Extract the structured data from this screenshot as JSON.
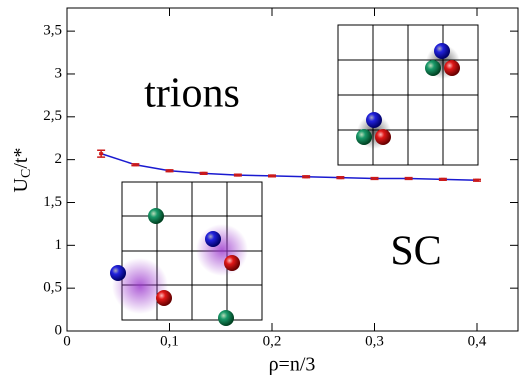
{
  "chart_data": {
    "type": "line",
    "x": [
      0.0333,
      0.0667,
      0.1,
      0.1333,
      0.1667,
      0.2,
      0.2333,
      0.2667,
      0.3,
      0.3333,
      0.3667,
      0.4
    ],
    "series": [
      {
        "color": "#1a1ad0",
        "marker_color": "#cc1a1a",
        "values": [
          2.07,
          1.94,
          1.87,
          1.84,
          1.82,
          1.81,
          1.8,
          1.79,
          1.78,
          1.78,
          1.77,
          1.76
        ],
        "errors": [
          0.04,
          0.01,
          0.01,
          0.01,
          0.01,
          0.01,
          0.01,
          0.01,
          0.01,
          0.01,
          0.01,
          0.01
        ]
      }
    ],
    "xlim": [
      0,
      0.44
    ],
    "ylim": [
      0,
      3.77
    ],
    "xticks": [
      0,
      {
        "value": 0.1,
        "label": "0,1"
      },
      {
        "value": 0.2,
        "label": "0,2"
      },
      {
        "value": 0.3,
        "label": "0,3"
      },
      {
        "value": 0.4,
        "label": "0,4"
      }
    ],
    "yticks": [
      0,
      {
        "value": 0.5,
        "label": "0,5"
      },
      1,
      {
        "value": 1.5,
        "label": "1,5"
      },
      2,
      {
        "value": 2.5,
        "label": "2,5"
      },
      3,
      {
        "value": 3.5,
        "label": "3,5"
      }
    ],
    "xlabel": "ρ=n/3",
    "ylabel": {
      "base": "U",
      "sub": "C",
      "rest": "/t*"
    },
    "annotations": [
      "trions",
      "SC"
    ]
  }
}
